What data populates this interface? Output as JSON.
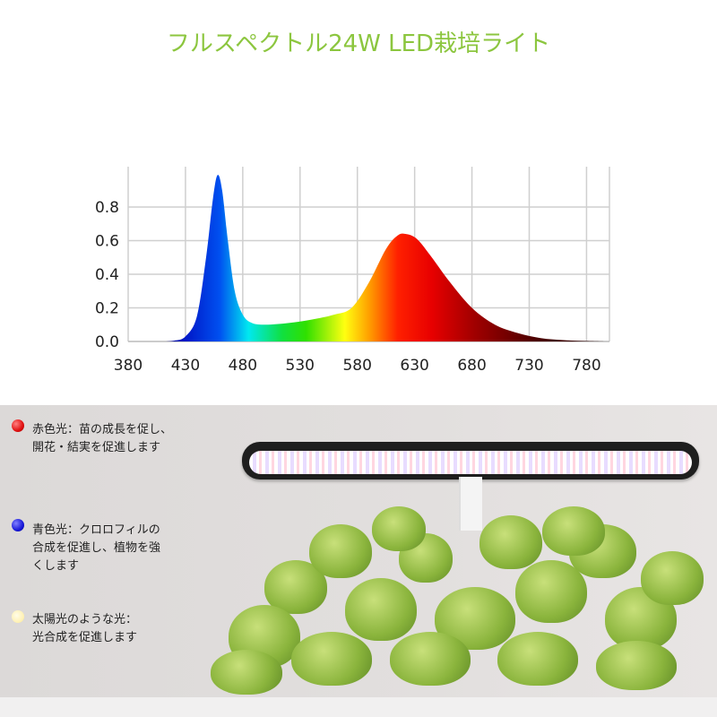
{
  "title": "フルスペクトル24W LED栽培ライト",
  "chart_data": {
    "type": "area",
    "title": "",
    "xlabel": "",
    "ylabel": "",
    "xlim": [
      380,
      800
    ],
    "ylim": [
      0,
      1.0
    ],
    "x_ticks": [
      "380",
      "430",
      "480",
      "530",
      "580",
      "630",
      "680",
      "730",
      "780"
    ],
    "y_ticks": [
      "0.0",
      "0.2",
      "0.4",
      "0.6",
      "0.8"
    ],
    "grid": true,
    "fill": "wavelength-colored spectrum",
    "x": [
      410,
      420,
      430,
      440,
      448,
      454,
      458,
      462,
      467,
      473,
      480,
      488,
      500,
      520,
      540,
      560,
      575,
      590,
      605,
      615,
      622,
      632,
      645,
      660,
      680,
      700,
      720,
      740,
      760,
      780,
      800
    ],
    "y": [
      0,
      0.005,
      0.03,
      0.15,
      0.5,
      0.85,
      0.99,
      0.9,
      0.6,
      0.3,
      0.16,
      0.11,
      0.1,
      0.11,
      0.13,
      0.16,
      0.2,
      0.35,
      0.55,
      0.63,
      0.64,
      0.61,
      0.5,
      0.36,
      0.2,
      0.1,
      0.05,
      0.02,
      0.008,
      0.003,
      0
    ]
  },
  "notes": [
    {
      "icon": "red-dot-icon",
      "color": "#e01010",
      "line1": "赤色光：苗の成長を促し、",
      "line2": "開花・結実を促進します",
      "line3": ""
    },
    {
      "icon": "blue-dot-icon",
      "color": "#1818d8",
      "line1": "青色光：クロロフィルの",
      "line2": "合成を促進し、植物を強",
      "line3": "くします"
    },
    {
      "icon": "sunlight-dot-icon",
      "color": "#fff6c0",
      "line1": "太陽光のような光：",
      "line2": "光合成を促進します",
      "line3": ""
    }
  ]
}
